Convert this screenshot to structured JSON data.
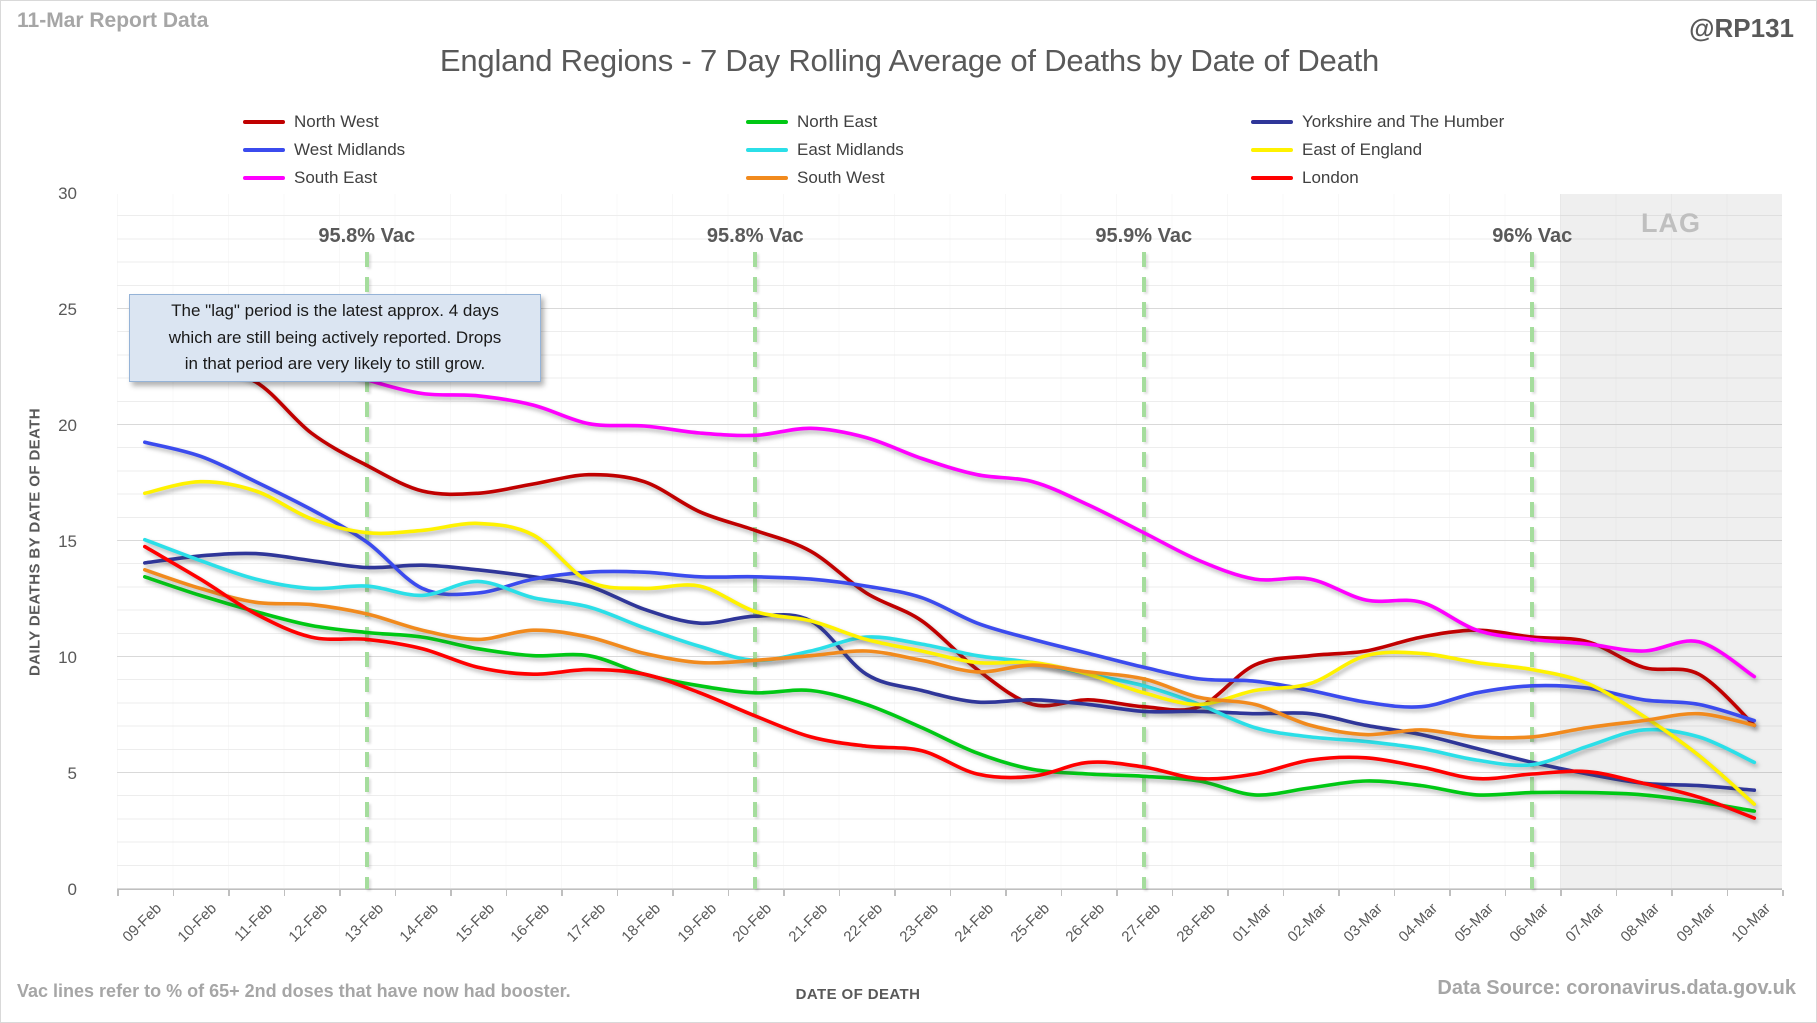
{
  "header": {
    "report_label": "11-Mar Report Data",
    "handle": "@RP131",
    "title": "England Regions - 7 Day Rolling Average of Deaths by Date of Death"
  },
  "annotation": {
    "text": "The \"lag\" period is the latest approx. 4 days\nwhich are still being actively reported.  Drops\nin that period are very likely to still grow."
  },
  "footer": {
    "left_note": "Vac lines refer to % of 65+ 2nd doses that have now had booster.",
    "source": "Data Source: coronavirus.data.gov.uk"
  },
  "legend": {
    "items": [
      {
        "label": "North West",
        "color": "#C00000"
      },
      {
        "label": "North East",
        "color": "#00C814"
      },
      {
        "label": "Yorkshire and The Humber",
        "color": "#2F3699"
      },
      {
        "label": "West Midlands",
        "color": "#3B4BEE"
      },
      {
        "label": "East Midlands",
        "color": "#2BDFE8"
      },
      {
        "label": "East of England",
        "color": "#FFF200"
      },
      {
        "label": "South East",
        "color": "#FF00FF"
      },
      {
        "label": "South West",
        "color": "#F18A1D"
      },
      {
        "label": "London",
        "color": "#FF0000"
      }
    ]
  },
  "chart_data": {
    "type": "line",
    "title": "England Regions - 7 Day Rolling Average of Deaths by Date of Death",
    "xlabel": "DATE OF DEATH",
    "ylabel": "DAILY DEATHS BY DATE OF DEATH",
    "ylim": [
      0,
      30
    ],
    "yticks": [
      0,
      5,
      10,
      15,
      20,
      25,
      30
    ],
    "grid": "minor horizontal every 1, major every 5",
    "legend_position": "top, 3 columns",
    "categories": [
      "09-Feb",
      "10-Feb",
      "11-Feb",
      "12-Feb",
      "13-Feb",
      "14-Feb",
      "15-Feb",
      "16-Feb",
      "17-Feb",
      "18-Feb",
      "19-Feb",
      "20-Feb",
      "21-Feb",
      "22-Feb",
      "23-Feb",
      "24-Feb",
      "25-Feb",
      "26-Feb",
      "27-Feb",
      "28-Feb",
      "01-Mar",
      "02-Mar",
      "03-Mar",
      "04-Mar",
      "05-Mar",
      "06-Mar",
      "07-Mar",
      "08-Mar",
      "09-Mar",
      "10-Mar"
    ],
    "series": [
      {
        "name": "North West",
        "color": "#C00000",
        "values": [
          22.3,
          22.5,
          21.9,
          19.7,
          18.3,
          17.2,
          17.1,
          17.5,
          17.9,
          17.6,
          16.3,
          15.5,
          14.6,
          12.8,
          11.6,
          9.5,
          8.0,
          8.2,
          7.9,
          7.9,
          9.7,
          10.1,
          10.3,
          10.9,
          11.2,
          10.9,
          10.7,
          9.6,
          9.3,
          7.1
        ]
      },
      {
        "name": "North East",
        "color": "#00C814",
        "values": [
          13.5,
          12.7,
          12.0,
          11.4,
          11.1,
          10.9,
          10.4,
          10.1,
          10.1,
          9.3,
          8.8,
          8.5,
          8.6,
          8.0,
          7.0,
          5.9,
          5.2,
          5.0,
          4.9,
          4.7,
          4.1,
          4.4,
          4.7,
          4.5,
          4.1,
          4.2,
          4.2,
          4.1,
          3.8,
          3.4
        ]
      },
      {
        "name": "Yorkshire and The Humber",
        "color": "#2F3699",
        "values": [
          14.1,
          14.4,
          14.5,
          14.2,
          13.9,
          14.0,
          13.8,
          13.5,
          13.1,
          12.1,
          11.5,
          11.8,
          11.6,
          9.3,
          8.6,
          8.1,
          8.2,
          8.0,
          7.7,
          7.7,
          7.6,
          7.6,
          7.1,
          6.7,
          6.1,
          5.5,
          5.0,
          4.6,
          4.5,
          4.3
        ]
      },
      {
        "name": "West Midlands",
        "color": "#3B4BEE",
        "values": [
          19.3,
          18.7,
          17.6,
          16.4,
          15.0,
          13.0,
          12.8,
          13.4,
          13.7,
          13.7,
          13.5,
          13.5,
          13.4,
          13.1,
          12.6,
          11.5,
          10.8,
          10.2,
          9.6,
          9.1,
          9.0,
          8.6,
          8.1,
          7.9,
          8.5,
          8.8,
          8.7,
          8.2,
          8.0,
          7.3
        ]
      },
      {
        "name": "East Midlands",
        "color": "#2BDFE8",
        "values": [
          15.1,
          14.2,
          13.4,
          13.0,
          13.1,
          12.7,
          13.3,
          12.6,
          12.2,
          11.3,
          10.5,
          9.9,
          10.3,
          10.9,
          10.6,
          10.1,
          9.8,
          9.3,
          8.8,
          8.0,
          7.0,
          6.6,
          6.4,
          6.1,
          5.6,
          5.4,
          6.2,
          6.9,
          6.6,
          5.5
        ]
      },
      {
        "name": "East of England",
        "color": "#FFF200",
        "values": [
          17.1,
          17.6,
          17.2,
          16.0,
          15.4,
          15.5,
          15.8,
          15.3,
          13.3,
          13.0,
          13.1,
          12.0,
          11.6,
          10.8,
          10.3,
          9.8,
          9.8,
          9.3,
          8.5,
          8.0,
          8.6,
          8.9,
          10.1,
          10.2,
          9.8,
          9.5,
          8.9,
          7.5,
          5.8,
          3.7
        ]
      },
      {
        "name": "South East",
        "color": "#FF00FF",
        "values": [
          23.8,
          24.3,
          23.8,
          22.9,
          22.0,
          21.4,
          21.3,
          20.9,
          20.1,
          20.0,
          19.7,
          19.6,
          19.9,
          19.5,
          18.6,
          17.9,
          17.6,
          16.6,
          15.4,
          14.2,
          13.4,
          13.4,
          12.5,
          12.4,
          11.2,
          10.8,
          10.6,
          10.3,
          10.7,
          9.2
        ]
      },
      {
        "name": "South West",
        "color": "#F18A1D",
        "values": [
          13.8,
          13.0,
          12.4,
          12.3,
          11.9,
          11.2,
          10.8,
          11.2,
          10.9,
          10.2,
          9.8,
          9.9,
          10.1,
          10.3,
          9.9,
          9.4,
          9.7,
          9.4,
          9.1,
          8.3,
          8.0,
          7.1,
          6.7,
          6.9,
          6.6,
          6.6,
          7.0,
          7.3,
          7.6,
          7.1
        ]
      },
      {
        "name": "London",
        "color": "#FF0000",
        "values": [
          14.8,
          13.4,
          11.9,
          10.9,
          10.8,
          10.4,
          9.6,
          9.3,
          9.5,
          9.3,
          8.5,
          7.5,
          6.6,
          6.2,
          6.0,
          5.0,
          4.9,
          5.5,
          5.3,
          4.8,
          5.0,
          5.6,
          5.7,
          5.3,
          4.8,
          5.0,
          5.1,
          4.6,
          4.0,
          3.1
        ]
      }
    ],
    "vac_lines": [
      {
        "label": "95.8% Vac",
        "date": "13-Feb",
        "index": 4
      },
      {
        "label": "95.8% Vac",
        "date": "20-Feb",
        "index": 11
      },
      {
        "label": "95.9% Vac",
        "date": "27-Feb",
        "index": 18
      },
      {
        "label": "96% Vac",
        "date": "06-Mar",
        "index": 25
      }
    ],
    "lag": {
      "label": "LAG",
      "start_index": 26,
      "covers": [
        "07-Mar",
        "08-Mar",
        "09-Mar",
        "10-Mar"
      ]
    }
  }
}
